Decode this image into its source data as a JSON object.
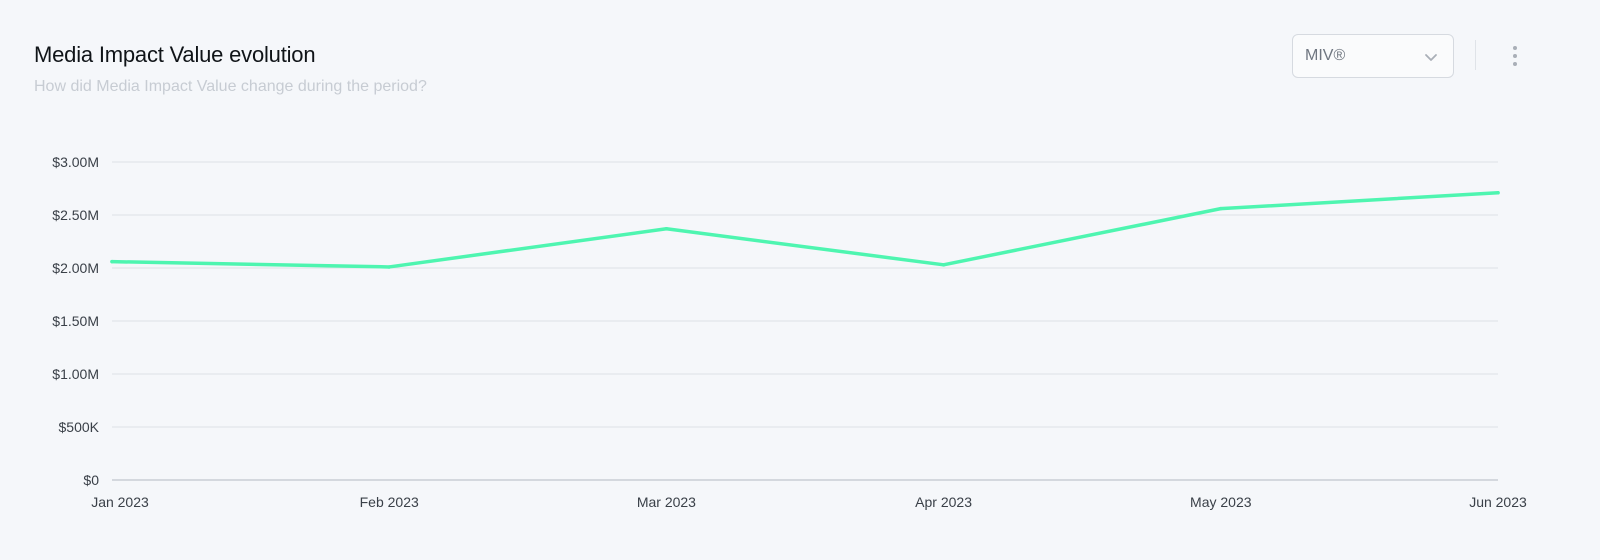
{
  "header": {
    "title": "Media Impact Value evolution",
    "subtitle": "How did Media Impact Value change during the period?"
  },
  "controls": {
    "metric_select": {
      "selected": "MIV®"
    }
  },
  "icons": {
    "dropdown": "chevron-down-icon",
    "menu": "more-vertical-icon"
  },
  "colors": {
    "line": "#4ef5b0",
    "grid": "#dde1e6",
    "axis_text": "#3a4048"
  },
  "chart_data": {
    "type": "line",
    "x": [
      "Jan 2023",
      "Feb 2023",
      "Mar 2023",
      "Apr 2023",
      "May 2023",
      "Jun 2023"
    ],
    "series": [
      {
        "values": [
          2060000,
          2010000,
          2370000,
          2030000,
          2560000,
          2710000
        ]
      }
    ],
    "ylim": [
      0,
      3000000
    ],
    "yticks": [
      0,
      500000,
      1000000,
      1500000,
      2000000,
      2500000,
      3000000
    ],
    "ytick_labels": [
      "$0",
      "$500K",
      "$1.00M",
      "$1.50M",
      "$2.00M",
      "$2.50M",
      "$3.00M"
    ],
    "grid": true,
    "legend": "none"
  }
}
